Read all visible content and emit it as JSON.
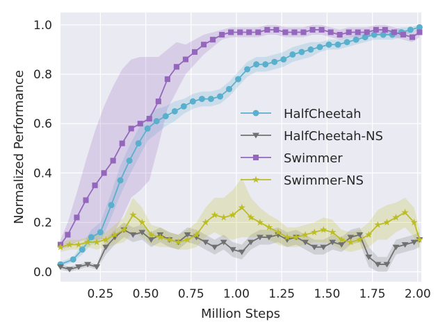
{
  "chart_data": {
    "type": "line",
    "title": "",
    "xlabel": "Million Steps",
    "ylabel": "Normalized Performance",
    "xlim": [
      0.03,
      2.02
    ],
    "ylim": [
      -0.04,
      1.05
    ],
    "xticks": [
      0.25,
      0.5,
      0.75,
      1.0,
      1.25,
      1.5,
      1.75,
      2.0
    ],
    "xtick_labels": [
      "0.25",
      "0.50",
      "0.75",
      "1.00",
      "1.25",
      "1.50",
      "1.75",
      "2.00"
    ],
    "yticks": [
      0.0,
      0.2,
      0.4,
      0.6,
      0.8,
      1.0
    ],
    "ytick_labels": [
      "0.0",
      "0.2",
      "0.4",
      "0.6",
      "0.8",
      "1.0"
    ],
    "grid": true,
    "legend_position": "center-right",
    "series": [
      {
        "name": "HalfCheetah",
        "color": "#5aafcc",
        "marker": "circle",
        "x": [
          0.03,
          0.1,
          0.15,
          0.2,
          0.25,
          0.31,
          0.36,
          0.41,
          0.46,
          0.51,
          0.56,
          0.61,
          0.66,
          0.71,
          0.76,
          0.81,
          0.86,
          0.91,
          0.96,
          1.01,
          1.06,
          1.11,
          1.16,
          1.21,
          1.26,
          1.31,
          1.36,
          1.41,
          1.46,
          1.51,
          1.56,
          1.61,
          1.66,
          1.71,
          1.76,
          1.81,
          1.86,
          1.91,
          1.96,
          2.01
        ],
        "values": [
          0.03,
          0.05,
          0.09,
          0.14,
          0.16,
          0.27,
          0.37,
          0.45,
          0.52,
          0.58,
          0.61,
          0.63,
          0.65,
          0.67,
          0.69,
          0.7,
          0.7,
          0.71,
          0.74,
          0.78,
          0.82,
          0.84,
          0.84,
          0.85,
          0.86,
          0.88,
          0.89,
          0.9,
          0.91,
          0.92,
          0.92,
          0.93,
          0.94,
          0.95,
          0.96,
          0.96,
          0.96,
          0.97,
          0.98,
          0.99
        ],
        "band": [
          0.01,
          0.01,
          0.02,
          0.03,
          0.04,
          0.05,
          0.06,
          0.06,
          0.06,
          0.05,
          0.05,
          0.04,
          0.04,
          0.03,
          0.03,
          0.03,
          0.03,
          0.03,
          0.03,
          0.03,
          0.03,
          0.03,
          0.03,
          0.03,
          0.03,
          0.03,
          0.03,
          0.03,
          0.02,
          0.02,
          0.02,
          0.02,
          0.02,
          0.02,
          0.02,
          0.02,
          0.02,
          0.02,
          0.01,
          0.01
        ]
      },
      {
        "name": "HalfCheetah-NS",
        "color": "#707070",
        "marker": "triangle-down",
        "x": [
          0.03,
          0.08,
          0.13,
          0.18,
          0.23,
          0.28,
          0.33,
          0.38,
          0.43,
          0.48,
          0.53,
          0.58,
          0.63,
          0.68,
          0.73,
          0.78,
          0.83,
          0.88,
          0.93,
          0.98,
          1.03,
          1.08,
          1.13,
          1.18,
          1.23,
          1.28,
          1.33,
          1.38,
          1.43,
          1.48,
          1.53,
          1.58,
          1.63,
          1.68,
          1.73,
          1.78,
          1.83,
          1.88,
          1.93,
          1.98,
          2.01
        ],
        "values": [
          0.02,
          0.01,
          0.02,
          0.03,
          0.02,
          0.1,
          0.14,
          0.17,
          0.15,
          0.16,
          0.13,
          0.15,
          0.13,
          0.12,
          0.15,
          0.14,
          0.12,
          0.1,
          0.12,
          0.09,
          0.08,
          0.12,
          0.14,
          0.14,
          0.15,
          0.13,
          0.14,
          0.12,
          0.1,
          0.1,
          0.12,
          0.11,
          0.14,
          0.15,
          0.06,
          0.03,
          0.03,
          0.1,
          0.11,
          0.12,
          0.13
        ],
        "band": [
          0.01,
          0.01,
          0.01,
          0.01,
          0.01,
          0.03,
          0.03,
          0.03,
          0.03,
          0.03,
          0.03,
          0.03,
          0.03,
          0.03,
          0.03,
          0.03,
          0.03,
          0.03,
          0.03,
          0.03,
          0.03,
          0.03,
          0.03,
          0.03,
          0.03,
          0.03,
          0.03,
          0.03,
          0.03,
          0.03,
          0.03,
          0.03,
          0.03,
          0.03,
          0.04,
          0.03,
          0.03,
          0.03,
          0.03,
          0.03,
          0.03
        ]
      },
      {
        "name": "Swimmer",
        "color": "#9467bd",
        "marker": "square",
        "x": [
          0.03,
          0.07,
          0.12,
          0.17,
          0.22,
          0.27,
          0.32,
          0.37,
          0.42,
          0.47,
          0.52,
          0.57,
          0.62,
          0.67,
          0.72,
          0.77,
          0.82,
          0.87,
          0.92,
          0.97,
          1.02,
          1.07,
          1.12,
          1.17,
          1.22,
          1.27,
          1.32,
          1.37,
          1.42,
          1.47,
          1.52,
          1.57,
          1.62,
          1.67,
          1.72,
          1.77,
          1.82,
          1.87,
          1.92,
          1.97,
          2.01
        ],
        "values": [
          0.11,
          0.15,
          0.22,
          0.29,
          0.35,
          0.4,
          0.45,
          0.52,
          0.58,
          0.6,
          0.62,
          0.69,
          0.78,
          0.83,
          0.86,
          0.89,
          0.92,
          0.94,
          0.96,
          0.97,
          0.97,
          0.97,
          0.97,
          0.98,
          0.98,
          0.97,
          0.97,
          0.97,
          0.98,
          0.98,
          0.97,
          0.96,
          0.97,
          0.97,
          0.97,
          0.98,
          0.98,
          0.97,
          0.96,
          0.95,
          0.97
        ],
        "band": [
          0.02,
          0.05,
          0.1,
          0.16,
          0.22,
          0.27,
          0.3,
          0.3,
          0.28,
          0.27,
          0.25,
          0.18,
          0.12,
          0.1,
          0.06,
          0.05,
          0.04,
          0.03,
          0.02,
          0.02,
          0.02,
          0.02,
          0.02,
          0.02,
          0.02,
          0.02,
          0.02,
          0.02,
          0.02,
          0.02,
          0.02,
          0.02,
          0.02,
          0.02,
          0.02,
          0.02,
          0.02,
          0.02,
          0.02,
          0.02,
          0.02
        ]
      },
      {
        "name": "Swimmer-NS",
        "color": "#bcbd22",
        "marker": "star",
        "x": [
          0.03,
          0.08,
          0.13,
          0.18,
          0.23,
          0.28,
          0.33,
          0.38,
          0.43,
          0.48,
          0.53,
          0.58,
          0.63,
          0.68,
          0.73,
          0.78,
          0.83,
          0.88,
          0.93,
          0.98,
          1.03,
          1.08,
          1.13,
          1.18,
          1.23,
          1.28,
          1.33,
          1.38,
          1.43,
          1.48,
          1.53,
          1.58,
          1.63,
          1.68,
          1.73,
          1.78,
          1.83,
          1.88,
          1.93,
          1.98,
          2.01
        ],
        "values": [
          0.1,
          0.11,
          0.11,
          0.12,
          0.12,
          0.13,
          0.15,
          0.17,
          0.23,
          0.2,
          0.15,
          0.14,
          0.13,
          0.12,
          0.13,
          0.15,
          0.2,
          0.23,
          0.22,
          0.23,
          0.26,
          0.22,
          0.2,
          0.18,
          0.16,
          0.14,
          0.14,
          0.15,
          0.16,
          0.17,
          0.16,
          0.13,
          0.12,
          0.13,
          0.15,
          0.19,
          0.2,
          0.22,
          0.24,
          0.2,
          0.13
        ],
        "band": [
          0.02,
          0.02,
          0.02,
          0.02,
          0.03,
          0.03,
          0.04,
          0.05,
          0.07,
          0.06,
          0.04,
          0.04,
          0.03,
          0.03,
          0.04,
          0.05,
          0.06,
          0.07,
          0.08,
          0.1,
          0.12,
          0.08,
          0.06,
          0.05,
          0.05,
          0.04,
          0.04,
          0.04,
          0.04,
          0.05,
          0.05,
          0.04,
          0.04,
          0.04,
          0.05,
          0.06,
          0.07,
          0.06,
          0.06,
          0.06,
          0.04
        ]
      }
    ]
  }
}
